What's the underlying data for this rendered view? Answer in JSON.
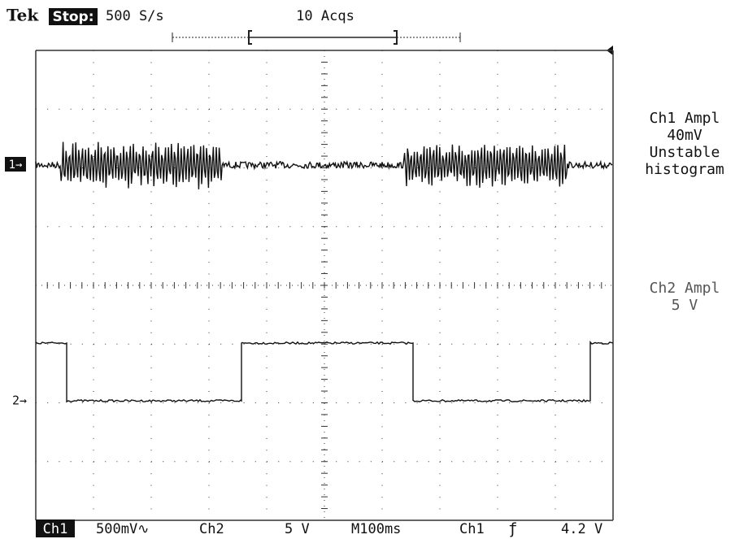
{
  "header": {
    "brand": "Tek",
    "status": "Stop:",
    "sample_rate": "500 S/s",
    "acquisitions": "10 Acqs"
  },
  "markers": {
    "ch1": "1→",
    "ch2": "2→"
  },
  "side_labels": {
    "ch1": [
      "Ch1 Ampl",
      "40mV",
      "Unstable",
      "histogram"
    ],
    "ch2": [
      "Ch2 Ampl",
      "5 V"
    ]
  },
  "footer": {
    "ch1": "Ch1",
    "ch1_scale": "500mV∿",
    "ch2": "Ch2",
    "ch2_scale": "5 V",
    "timebase": "M100ms",
    "trigger_source": "Ch1",
    "trigger_slope": "ƒ",
    "trigger_level": "4.2 V"
  }
}
